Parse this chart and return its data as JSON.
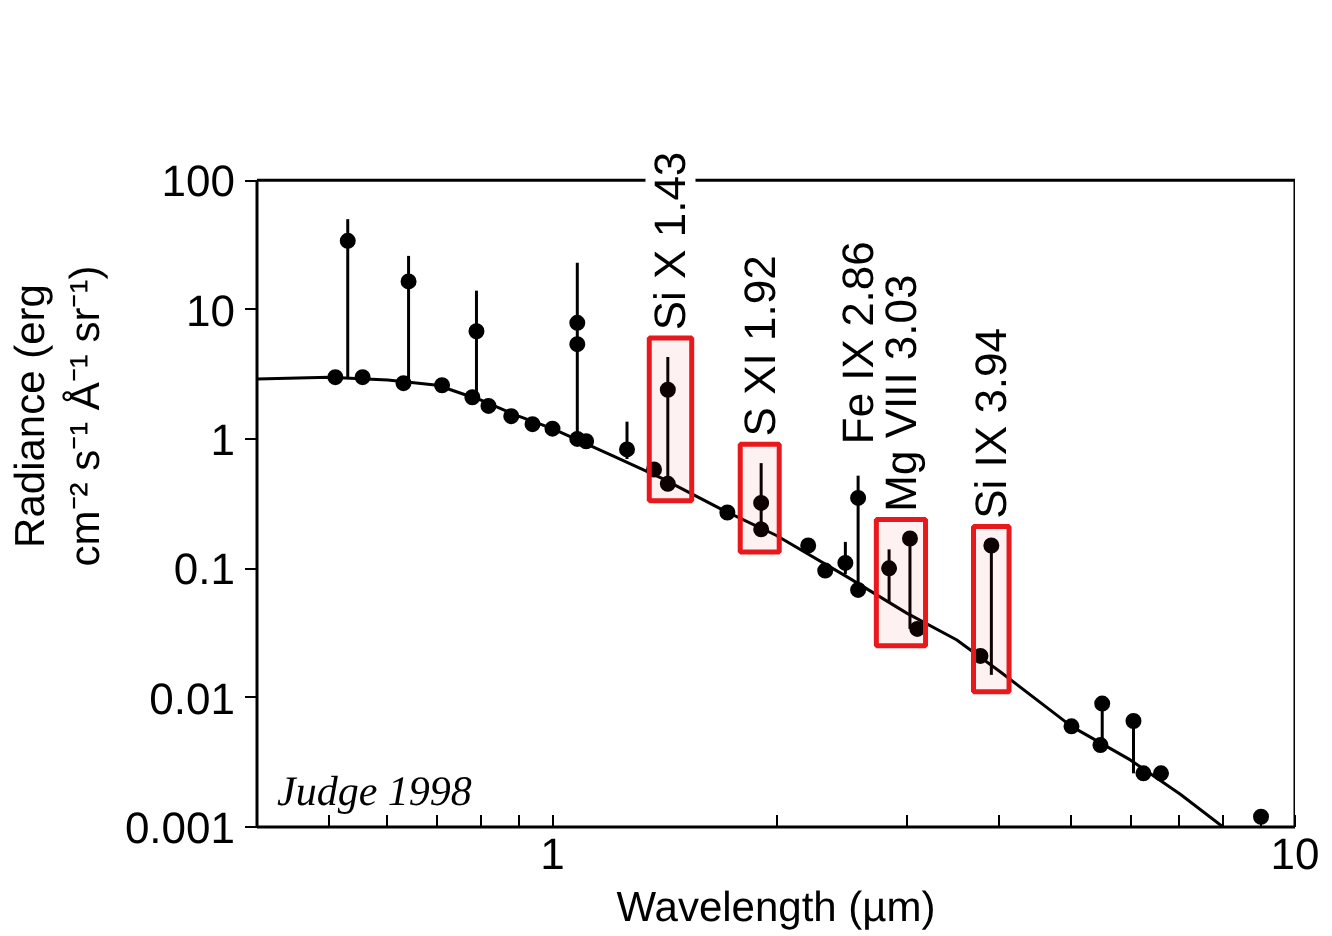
{
  "chart_data": {
    "type": "scatter",
    "xlabel": "Wavelength (µm)",
    "ylabel": "Radiance (erg\ncm⁻² s⁻¹ Å⁻¹ sr⁻¹)",
    "log": "xy",
    "xlim": [
      0.4,
      10
    ],
    "ylim": [
      0.001,
      100
    ],
    "xticks": [
      {
        "value": 0.5,
        "label": null
      },
      {
        "value": 0.6,
        "label": null
      },
      {
        "value": 0.7,
        "label": null
      },
      {
        "value": 0.8,
        "label": null
      },
      {
        "value": 0.9,
        "label": null
      },
      1,
      {
        "value": 2,
        "label": null
      },
      {
        "value": 3,
        "label": null
      },
      {
        "value": 4,
        "label": null
      },
      {
        "value": 5,
        "label": null
      },
      {
        "value": 6,
        "label": null
      },
      {
        "value": 7,
        "label": null
      },
      {
        "value": 8,
        "label": null
      },
      {
        "value": 9,
        "label": null
      },
      10
    ],
    "yticks": [
      0.001,
      0.01,
      0.1,
      1,
      10,
      100
    ],
    "series": [
      {
        "type": "line",
        "color": "#000000",
        "marker": "none",
        "x": [
          0.4,
          0.5,
          0.6,
          0.7,
          0.8,
          0.9,
          1.0,
          1.2,
          1.4,
          1.7,
          2.0,
          2.5,
          3.0,
          3.5,
          4.0,
          5.0,
          6.0,
          7.0,
          8.0
        ],
        "values": [
          2.9,
          3.0,
          2.85,
          2.6,
          2.0,
          1.5,
          1.2,
          0.75,
          0.5,
          0.28,
          0.18,
          0.085,
          0.045,
          0.028,
          0.016,
          0.006,
          0.0033,
          0.0018,
          0.001
        ]
      },
      {
        "color": "#000000",
        "marker": "circle",
        "x": [
          0.51,
          0.555,
          0.63,
          0.71,
          0.78,
          0.82,
          0.88,
          0.94,
          1.0,
          1.08,
          1.11,
          1.36,
          1.37,
          1.43,
          1.72,
          1.88,
          1.91,
          2.33,
          2.58,
          3.1,
          3.77,
          5.0,
          5.47,
          6.25,
          6.6,
          9.0,
          0.53,
          0.64,
          0.79,
          1.08,
          1.08,
          1.26,
          1.43,
          1.91,
          2.21,
          2.48,
          2.58,
          2.84,
          3.03,
          3.9,
          5.5,
          6.06
        ],
        "values": [
          3.0,
          3.0,
          2.7,
          2.6,
          2.1,
          1.8,
          1.5,
          1.3,
          1.2,
          1.0,
          0.96,
          null,
          0.58,
          0.45,
          0.27,
          null,
          0.2,
          0.096,
          0.068,
          0.034,
          0.021,
          0.006,
          0.0043,
          0.0026,
          0.0026,
          0.0012,
          34,
          16.5,
          6.8,
          7.9,
          5.4,
          0.83,
          2.4,
          0.32,
          0.15,
          0.11,
          0.35,
          0.1,
          0.17,
          0.15,
          0.009,
          0.0066
        ],
        "errors": [
          null,
          null,
          null,
          null,
          null,
          null,
          null,
          null,
          null,
          null,
          null,
          null,
          null,
          null,
          null,
          null,
          null,
          null,
          null,
          null,
          null,
          null,
          null,
          null,
          null,
          null,
          [
            3.0,
            50
          ],
          [
            2.8,
            26
          ],
          [
            2.1,
            14
          ],
          [
            1.0,
            23
          ],
          null,
          [
            0.7,
            1.36
          ],
          [
            0.45,
            4.3
          ],
          [
            0.2,
            0.65
          ],
          [
            0.13,
            0.17
          ],
          [
            0.09,
            0.16
          ],
          [
            0.068,
            0.52
          ],
          [
            0.055,
            0.14
          ],
          [
            0.034,
            0.17
          ],
          [
            0.015,
            0.15
          ],
          [
            0.0043,
            0.009
          ],
          [
            0.0026,
            0.0066
          ]
        ]
      }
    ],
    "bands": [
      {
        "axis": "x",
        "from": 1.35,
        "to": 1.54,
        "label": "Si X 1.43",
        "color": "#e8191c"
      },
      {
        "axis": "x",
        "from": 1.79,
        "to": 2.02,
        "label": "S XI 1.92",
        "color": "#e8191c"
      },
      {
        "axis": "x",
        "from": 2.73,
        "to": 3.18,
        "label": "Mg VIII 3.03",
        "color": "#e8191c"
      },
      {
        "axis": "x",
        "from": 3.69,
        "to": 4.12,
        "label": "Si IX 3.94",
        "color": "#e8191c"
      }
    ],
    "annotations": [
      {
        "text": "Fe IX 2.86",
        "x": 2.58,
        "y": 0.35
      },
      "Judge 1998"
    ]
  }
}
